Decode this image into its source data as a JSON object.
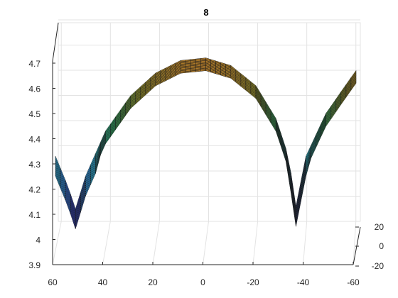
{
  "chart_data": {
    "type": "surface",
    "title": "8",
    "xlabel": "",
    "ylabel": "",
    "zlabel": "",
    "x_ticks": [
      60,
      40,
      20,
      0,
      -20,
      -40,
      -60
    ],
    "y_ticks": [
      -20,
      0,
      20
    ],
    "z_ticks": [
      3.9,
      4,
      4.1,
      4.2,
      4.3,
      4.4,
      4.5,
      4.6,
      4.7
    ],
    "xlim": [
      -60,
      60
    ],
    "ylim": [
      -20,
      20
    ],
    "zlim": [
      3.9,
      4.75
    ],
    "grid": true,
    "colormap": [
      "#3b22d8",
      "#2e7fe6",
      "#29b3c6",
      "#2d9a57",
      "#7c7a25",
      "#b57a2a"
    ],
    "surface_profile": {
      "x": [
        60,
        55,
        52,
        48,
        40,
        30,
        20,
        10,
        0,
        -10,
        -20,
        -28,
        -33,
        -36,
        -40,
        -48,
        -55,
        -60
      ],
      "z": [
        4.28,
        4.16,
        4.07,
        4.2,
        4.38,
        4.52,
        4.61,
        4.66,
        4.67,
        4.64,
        4.56,
        4.43,
        4.28,
        4.08,
        4.28,
        4.45,
        4.55,
        4.62
      ]
    }
  }
}
